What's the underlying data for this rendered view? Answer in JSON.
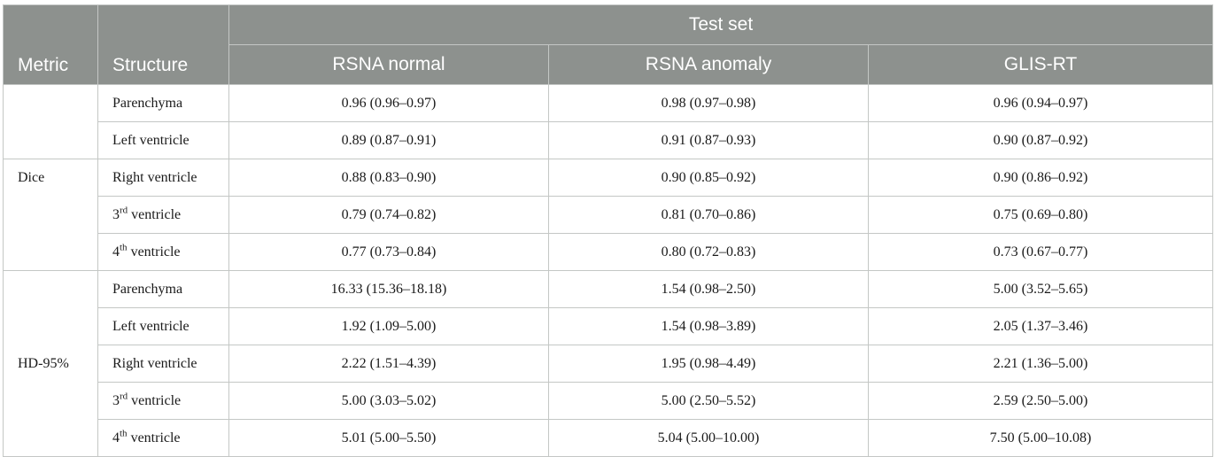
{
  "header": {
    "metric": "Metric",
    "structure": "Structure",
    "test_set": "Test set",
    "columns": [
      "RSNA normal",
      "RSNA anomaly",
      "GLIS-RT"
    ]
  },
  "rows": [
    {
      "metric": "",
      "structure": "Parenchyma",
      "sup": "",
      "values": [
        "0.96 (0.96–0.97)",
        "0.98 (0.97–0.98)",
        "0.96 (0.94–0.97)"
      ]
    },
    {
      "metric": "",
      "structure": "Left ventricle",
      "sup": "",
      "values": [
        "0.89 (0.87–0.91)",
        "0.91 (0.87–0.93)",
        "0.90 (0.87–0.92)"
      ]
    },
    {
      "metric": "Dice",
      "structure": "Right ventricle",
      "sup": "",
      "values": [
        "0.88 (0.83–0.90)",
        "0.90 (0.85–0.92)",
        "0.90 (0.86–0.92)"
      ]
    },
    {
      "metric": "",
      "structure_num": "3",
      "sup": "rd",
      "structure": " ventricle",
      "values": [
        "0.79 (0.74–0.82)",
        "0.81 (0.70–0.86)",
        "0.75 (0.69–0.80)"
      ]
    },
    {
      "metric": "",
      "structure_num": "4",
      "sup": "th",
      "structure": " ventricle",
      "values": [
        "0.77 (0.73–0.84)",
        "0.80 (0.72–0.83)",
        "0.73 (0.67–0.77)"
      ]
    },
    {
      "metric": "",
      "structure": "Parenchyma",
      "sup": "",
      "values": [
        "16.33 (15.36–18.18)",
        "1.54 (0.98–2.50)",
        "5.00 (3.52–5.65)"
      ]
    },
    {
      "metric": "",
      "structure": "Left ventricle",
      "sup": "",
      "values": [
        "1.92 (1.09–5.00)",
        "1.54 (0.98–3.89)",
        "2.05 (1.37–3.46)"
      ]
    },
    {
      "metric": "HD-95%",
      "structure": "Right ventricle",
      "sup": "",
      "values": [
        "2.22 (1.51–4.39)",
        "1.95 (0.98–4.49)",
        "2.21 (1.36–5.00)"
      ]
    },
    {
      "metric": "",
      "structure_num": "3",
      "sup": "rd",
      "structure": " ventricle",
      "values": [
        "5.00 (3.03–5.02)",
        "5.00 (2.50–5.52)",
        "2.59 (2.50–5.00)"
      ]
    },
    {
      "metric": "",
      "structure_num": "4",
      "sup": "th",
      "structure": " ventricle",
      "values": [
        "5.01 (5.00–5.50)",
        "5.04 (5.00–10.00)",
        "7.50 (5.00–10.08)"
      ]
    }
  ],
  "colors": {
    "header_bg": "#8d918e",
    "header_text": "#ffffff",
    "border": "#c4c7c5"
  }
}
